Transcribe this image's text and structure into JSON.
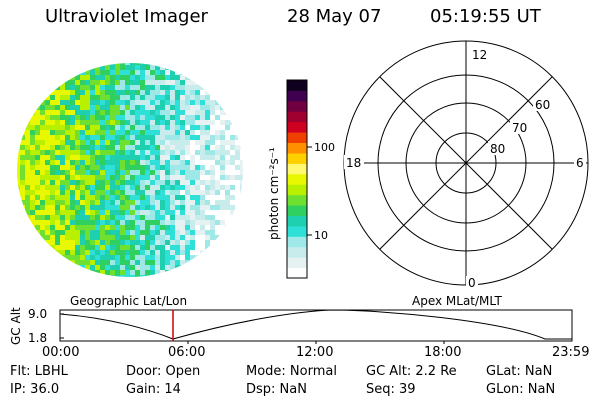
{
  "header": {
    "instrument": "Ultraviolet Imager",
    "date": "28 May 07",
    "time": "05:19:55 UT"
  },
  "colorbar": {
    "label": "photon cm⁻²s⁻¹",
    "ticks": [
      "100",
      "10"
    ],
    "colors": [
      "#ffffff",
      "#e6f2f2",
      "#c8ecec",
      "#9ee8e8",
      "#2ee0d8",
      "#1fd0b0",
      "#30d060",
      "#70e030",
      "#b8f000",
      "#e8f800",
      "#fff870",
      "#ffd000",
      "#ff9000",
      "#f04000",
      "#d00020",
      "#a00030",
      "#700040",
      "#400050",
      "#100020"
    ]
  },
  "polar": {
    "mlt_labels": {
      "top": "12",
      "left": "18",
      "right": "6",
      "bottom": "0"
    },
    "lat_labels": [
      "60",
      "70",
      "80"
    ]
  },
  "timeline": {
    "left_title": "Geographic Lat/Lon",
    "right_title": "Apex MLat/MLT",
    "axis_label": "GC Alt",
    "y_ticks": [
      "9.0",
      "1.8"
    ],
    "x_ticks": [
      "00:00",
      "06:00",
      "12:00",
      "18:00",
      "23:59"
    ],
    "marker_color": "#cc0000"
  },
  "info": {
    "flt": "Flt: LBHL",
    "ip": "IP: 36.0",
    "door": "Door: Open",
    "gain": "Gain: 14",
    "mode": "Mode: Normal",
    "dsp": "Dsp:  NaN",
    "gcalt": "GC Alt: 2.2 Re",
    "seq": "Seq: 39",
    "glat": "GLat:   NaN",
    "glon": "GLon:   NaN"
  }
}
